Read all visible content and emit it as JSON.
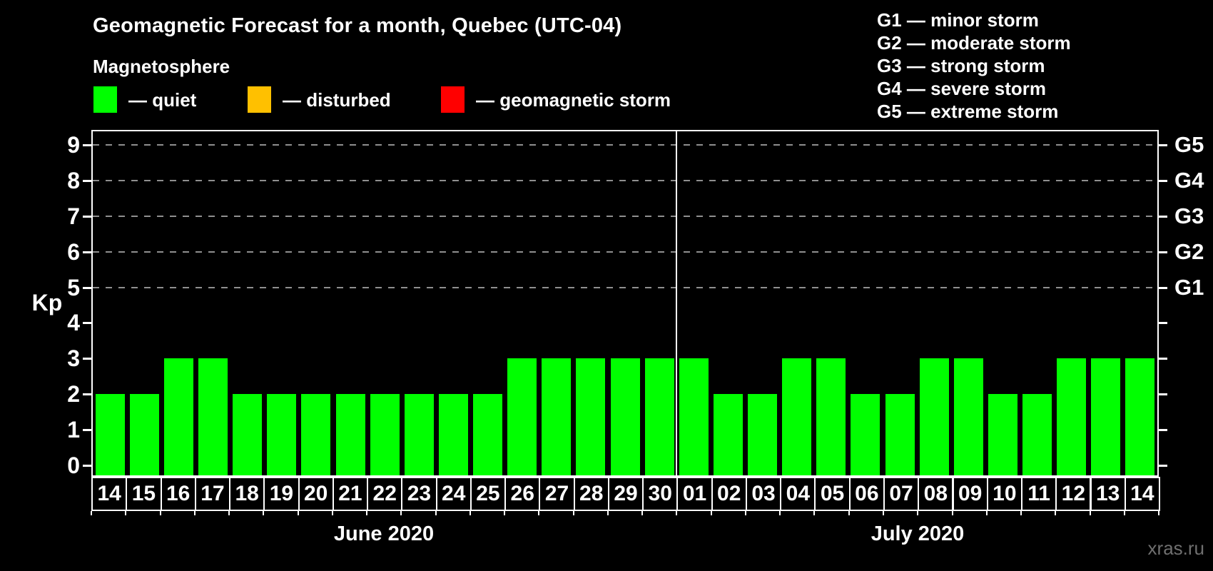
{
  "title": "Geomagnetic Forecast for a month, Quebec (UTC-04)",
  "subtitle": "Magnetosphere",
  "legend": {
    "items": [
      {
        "name": "quiet",
        "color": "#00ff00",
        "label": "— quiet"
      },
      {
        "name": "disturbed",
        "color": "#ffc000",
        "label": "— disturbed"
      },
      {
        "name": "geomagnetic-storm",
        "color": "#ff0000",
        "label": "— geomagnetic storm"
      }
    ]
  },
  "g_scale_legend": [
    "G1 — minor storm",
    "G2 — moderate storm",
    "G3 — strong storm",
    "G4 — severe storm",
    "G5 — extreme storm"
  ],
  "watermark": "xras.ru",
  "chart_data": {
    "type": "bar",
    "ylabel": "Kp",
    "ylim": [
      0,
      9.4
    ],
    "yticks": [
      0,
      1,
      2,
      3,
      4,
      5,
      6,
      7,
      8,
      9
    ],
    "gridlines_at": [
      5,
      6,
      7,
      8,
      9
    ],
    "right_axis_labels": [
      {
        "kp": 5,
        "label": "G1"
      },
      {
        "kp": 6,
        "label": "G2"
      },
      {
        "kp": 7,
        "label": "G3"
      },
      {
        "kp": 8,
        "label": "G4"
      },
      {
        "kp": 9,
        "label": "G5"
      }
    ],
    "grid": "dashed horizontal lines at Kp 5–9",
    "legend_position": "top",
    "bar_color": "#00ff00",
    "months": [
      {
        "label": "June 2020",
        "days": [
          "14",
          "15",
          "16",
          "17",
          "18",
          "19",
          "20",
          "21",
          "22",
          "23",
          "24",
          "25",
          "26",
          "27",
          "28",
          "29",
          "30"
        ],
        "values": [
          2,
          2,
          3,
          3,
          2,
          2,
          2,
          2,
          2,
          2,
          2,
          2,
          3,
          3,
          3,
          3,
          3
        ]
      },
      {
        "label": "July 2020",
        "days": [
          "01",
          "02",
          "03",
          "04",
          "05",
          "06",
          "07",
          "08",
          "09",
          "10",
          "11",
          "12",
          "13",
          "14"
        ],
        "values": [
          3,
          2,
          2,
          3,
          3,
          2,
          2,
          3,
          3,
          2,
          2,
          3,
          3,
          3
        ]
      }
    ]
  }
}
